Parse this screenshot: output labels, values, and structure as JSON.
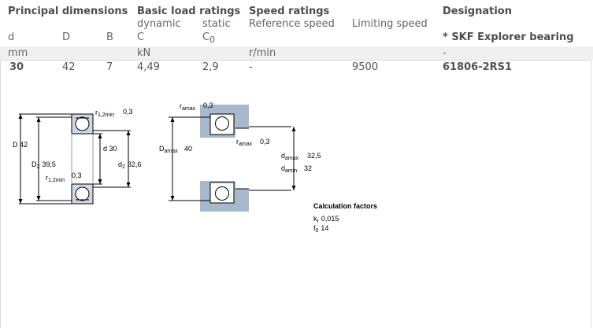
{
  "headers": {
    "principal": "Principal dimensions",
    "basic": "Basic load ratings",
    "speed": "Speed ratings",
    "designation": "Designation"
  },
  "subheaders": {
    "d": "d",
    "D": "D",
    "B": "B",
    "dynamic": "dynamic",
    "dynamic_sym": "C",
    "static": "static",
    "static_sym": "C",
    "static_sub": "0",
    "reference_speed": "Reference speed",
    "limiting_speed": "Limiting speed",
    "explorer": "* SKF Explorer bearing"
  },
  "units": {
    "mm": "mm",
    "kN": "kN",
    "rmin": "r/min",
    "dash": "-"
  },
  "values": {
    "d": "30",
    "D": "42",
    "B": "7",
    "C": "4,49",
    "C0": "2,9",
    "reference_speed": "-",
    "limiting_speed": "9500",
    "designation": "61806-2RS1"
  },
  "drawing1": {
    "D_label": "D",
    "D_value": "42",
    "D2_label": "D",
    "D2_sub": "2",
    "D2_value": "39,5",
    "r12_label": "r",
    "r12_sub": "1,2min",
    "r12_top_value": "0,3",
    "r12_bottom_value": "0,3",
    "d_label": "d",
    "d_value": "30",
    "d2_label": "d",
    "d2_sub": "2",
    "d2_value": "32,6"
  },
  "drawing2": {
    "ra_label": "r",
    "ra_sub": "amax",
    "ra_top_value": "0,3",
    "ra_mid_value": "0,3",
    "Da_label": "D",
    "Da_sub": "amax",
    "Da_value": "40",
    "damax_label": "d",
    "damax_sub": "amax",
    "damax_value": "32,5",
    "damin_label": "d",
    "damin_sub": "amin",
    "damin_value": "32"
  },
  "calc": {
    "title": "Calculation factors",
    "kr_label": "k",
    "kr_sub": "r",
    "kr_value": "0,015",
    "f0_label": "f",
    "f0_sub": "0",
    "f0_value": "14"
  },
  "colors": {
    "housing": "#a9b9cc",
    "line": "#000000",
    "unit_row": "#f0f0f0"
  }
}
